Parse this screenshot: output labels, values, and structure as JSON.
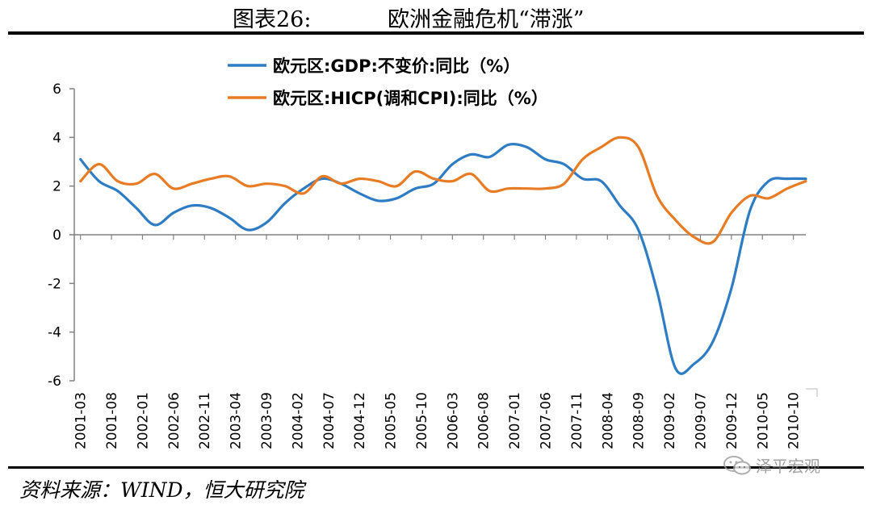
{
  "header": {
    "figure_label": "图表26:",
    "figure_title": "欧洲金融危机“滞涨”"
  },
  "source": "资料来源：WIND，恒大研究院",
  "watermark": {
    "text": "泽平宏观",
    "icon": "wechat-icon"
  },
  "colors": {
    "gdp": "#2e7cc4",
    "hicp": "#e87c24",
    "axis": "#808080"
  },
  "chart_data": {
    "type": "line",
    "title": "",
    "xlabel": "",
    "ylabel": "",
    "ylim": [
      -6,
      6
    ],
    "yticks": [
      -6,
      -4,
      -2,
      0,
      2,
      4,
      6
    ],
    "ytick_labels": [
      "-6",
      "-4",
      "-2",
      "0",
      "2",
      "4",
      "6"
    ],
    "xtick_labels": [
      "2001-03",
      "2001-08",
      "2002-01",
      "2002-06",
      "2002-11",
      "2003-04",
      "2003-09",
      "2004-02",
      "2004-07",
      "2004-12",
      "2005-05",
      "2005-10",
      "2006-03",
      "2006-08",
      "2007-01",
      "2007-06",
      "2007-11",
      "2008-04",
      "2008-09",
      "2009-02",
      "2009-07",
      "2009-12",
      "2010-05",
      "2010-10"
    ],
    "legend_position": "top",
    "x": [
      "2001-03",
      "2001-06",
      "2001-09",
      "2001-12",
      "2002-03",
      "2002-06",
      "2002-09",
      "2002-12",
      "2003-03",
      "2003-06",
      "2003-09",
      "2003-12",
      "2004-03",
      "2004-06",
      "2004-09",
      "2004-12",
      "2005-03",
      "2005-06",
      "2005-09",
      "2005-12",
      "2006-03",
      "2006-06",
      "2006-09",
      "2006-12",
      "2007-03",
      "2007-06",
      "2007-09",
      "2007-12",
      "2008-03",
      "2008-06",
      "2008-09",
      "2008-12",
      "2009-03",
      "2009-06",
      "2009-09",
      "2009-12",
      "2010-03",
      "2010-06",
      "2010-09",
      "2010-12"
    ],
    "series": [
      {
        "name": "欧元区:GDP:不变价:同比（%）",
        "color": "#2e7cc4",
        "values": [
          3.1,
          2.2,
          1.8,
          1.1,
          0.4,
          0.9,
          1.2,
          1.1,
          0.7,
          0.2,
          0.5,
          1.3,
          1.9,
          2.3,
          2.1,
          1.7,
          1.4,
          1.5,
          1.9,
          2.1,
          2.9,
          3.3,
          3.2,
          3.7,
          3.6,
          3.1,
          2.9,
          2.3,
          2.2,
          1.2,
          0.2,
          -2.3,
          -5.5,
          -5.3,
          -4.4,
          -2.2,
          1.0,
          2.2,
          2.3,
          2.3
        ]
      },
      {
        "name": "欧元区:HICP(调和CPI):同比（%）",
        "color": "#e87c24",
        "values": [
          2.2,
          2.9,
          2.2,
          2.1,
          2.5,
          1.9,
          2.1,
          2.3,
          2.4,
          2.0,
          2.1,
          2.0,
          1.7,
          2.4,
          2.1,
          2.3,
          2.2,
          2.0,
          2.6,
          2.3,
          2.2,
          2.5,
          1.8,
          1.9,
          1.9,
          1.9,
          2.1,
          3.1,
          3.6,
          4.0,
          3.6,
          1.6,
          0.6,
          -0.1,
          -0.3,
          0.9,
          1.6,
          1.5,
          1.9,
          2.2
        ]
      }
    ]
  }
}
